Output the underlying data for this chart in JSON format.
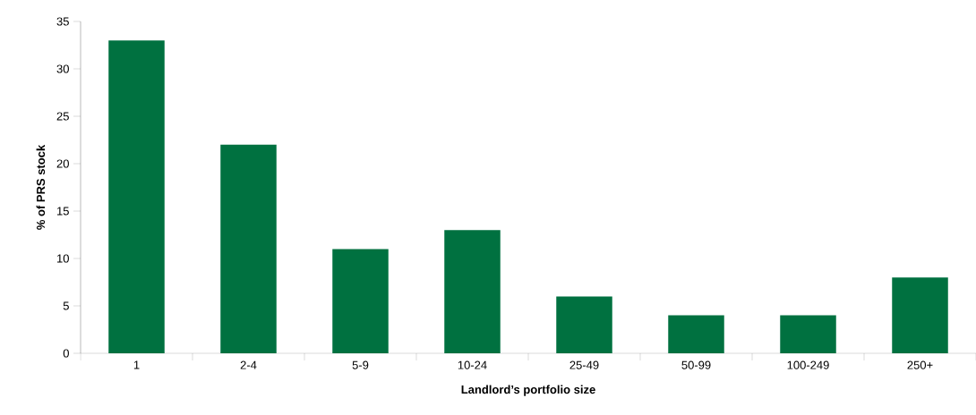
{
  "chart_data": {
    "type": "bar",
    "xlabel": "Landlord’s portfolio size",
    "ylabel": "% of PRS stock",
    "categories": [
      "1",
      "2-4",
      "5-9",
      "10-24",
      "25-49",
      "50-99",
      "100-249",
      "250+"
    ],
    "values": [
      33,
      22,
      11,
      13,
      6,
      4,
      4,
      8
    ],
    "color": "#007140",
    "ylim": [
      0,
      35
    ],
    "yticks": [
      0,
      5,
      10,
      15,
      20,
      25,
      30,
      35
    ]
  }
}
